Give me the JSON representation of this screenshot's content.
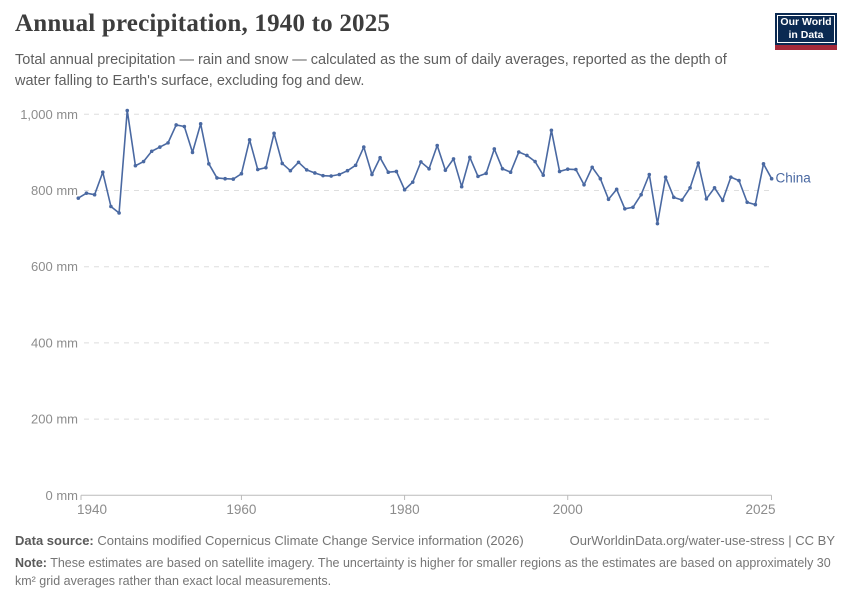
{
  "header": {
    "title": "Annual precipitation, 1940 to 2025",
    "subtitle": "Total annual precipitation — rain and snow — calculated as the sum of daily averages, reported as the depth of water falling to Earth's surface, excluding fog and dew.",
    "logo": {
      "line1": "Our World",
      "line2": "in Data",
      "navy": "#0b2a52",
      "red": "#a52a3a"
    }
  },
  "chart_data": {
    "type": "line",
    "title": "Annual precipitation, 1940 to 2025",
    "unit": "mm",
    "xlim": [
      1940,
      2025
    ],
    "ylim": [
      0,
      1000
    ],
    "grid": "horizontal-dashed",
    "legend_position": "end-of-line-label",
    "xticks": [
      1940,
      1960,
      1980,
      2000,
      2025
    ],
    "yticks": [
      1000,
      800,
      600,
      400,
      200,
      0
    ],
    "ytick_labels": [
      "1,000 mm",
      "800 mm",
      "600 mm",
      "400 mm",
      "200 mm",
      "0 mm"
    ],
    "x": [
      1940,
      1941,
      1942,
      1943,
      1944,
      1945,
      1946,
      1947,
      1948,
      1949,
      1950,
      1951,
      1952,
      1953,
      1954,
      1955,
      1956,
      1957,
      1958,
      1959,
      1960,
      1961,
      1962,
      1963,
      1964,
      1965,
      1966,
      1967,
      1968,
      1969,
      1970,
      1971,
      1972,
      1973,
      1974,
      1975,
      1976,
      1977,
      1978,
      1979,
      1980,
      1981,
      1982,
      1983,
      1984,
      1985,
      1986,
      1987,
      1988,
      1989,
      1990,
      1991,
      1992,
      1993,
      1994,
      1995,
      1996,
      1997,
      1998,
      1999,
      2000,
      2001,
      2002,
      2003,
      2004,
      2005,
      2006,
      2007,
      2008,
      2009,
      2010,
      2011,
      2012,
      2013,
      2014,
      2015,
      2016,
      2017,
      2018,
      2019,
      2020,
      2021,
      2022,
      2023,
      2024,
      2025
    ],
    "series": [
      {
        "name": "China",
        "color": "#4a69a2",
        "values": [
          780,
          793,
          789,
          848,
          758,
          741,
          1010,
          865,
          876,
          903,
          914,
          925,
          972,
          968,
          900,
          975,
          870,
          833,
          831,
          830,
          844,
          933,
          855,
          860,
          950,
          871,
          852,
          874,
          854,
          846,
          839,
          838,
          842,
          852,
          866,
          914,
          842,
          886,
          848,
          850,
          802,
          822,
          875,
          857,
          918,
          853,
          883,
          810,
          887,
          837,
          845,
          909,
          857,
          848,
          901,
          892,
          876,
          840,
          958,
          850,
          856,
          855,
          815,
          861,
          831,
          777,
          803,
          752,
          756,
          789,
          842,
          713,
          835,
          782,
          775,
          807,
          872,
          778,
          807,
          774,
          835,
          826,
          769,
          763,
          870,
          831
        ]
      }
    ]
  },
  "footer": {
    "data_source_label": "Data source:",
    "data_source_text": " Contains modified Copernicus Climate Change Service information (2026)",
    "link": "OurWorldinData.org/water-use-stress | CC BY",
    "note_label": "Note:",
    "note_text": " These estimates are based on satellite imagery. The uncertainty is higher for smaller regions as the estimates are based on approximately 30 km² grid averages rather than exact local measurements."
  }
}
